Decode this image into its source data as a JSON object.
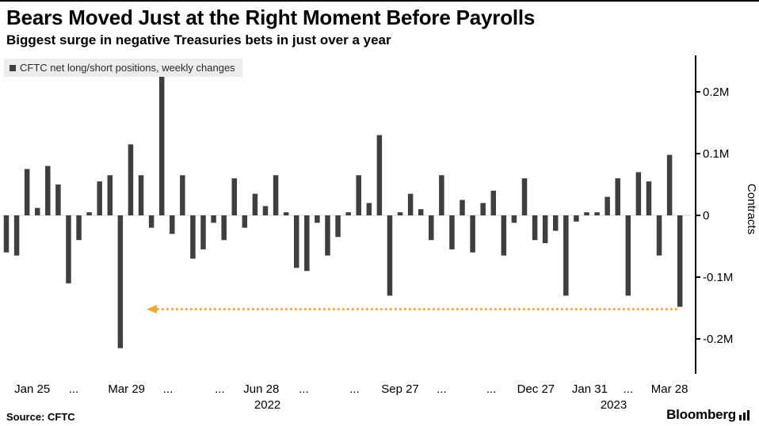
{
  "header": {
    "title": "Bears Moved Just at the Right Moment Before Payrolls",
    "subtitle": "Biggest surge in negative Treasuries bets in just over a year"
  },
  "legend": {
    "label": "CFTC net long/short positions, weekly changes",
    "swatch_color": "#3F3F3F"
  },
  "footer": {
    "source": "Source: CFTC",
    "brand": "Bloomberg"
  },
  "chart_data": {
    "type": "bar",
    "title": "Bears Moved Just at the Right Moment Before Payrolls",
    "subtitle": "Biggest surge in negative Treasuries bets in just over a year",
    "series_name": "CFTC net long/short positions, weekly changes",
    "unit": "millions of contracts",
    "ylabel": "Contracts",
    "xlabel": "",
    "ylim": [
      -0.26,
      0.26
    ],
    "grid": false,
    "legend_position": "top-left",
    "bar_color": "#3F3F3F",
    "zero_line_color": "#D6D6D6",
    "axis_color": "#000000",
    "values": [
      -0.06,
      -0.065,
      0.075,
      0.012,
      0.08,
      0.05,
      -0.11,
      -0.04,
      0.005,
      0.055,
      0.065,
      -0.215,
      0.115,
      0.065,
      -0.02,
      0.225,
      -0.03,
      0.065,
      -0.07,
      -0.055,
      -0.012,
      -0.04,
      0.06,
      -0.02,
      0.035,
      0.015,
      0.065,
      0.005,
      -0.085,
      -0.09,
      -0.012,
      -0.065,
      -0.035,
      0.005,
      0.065,
      0.02,
      0.13,
      -0.13,
      0.005,
      0.035,
      0.01,
      -0.04,
      0.065,
      -0.055,
      0.025,
      -0.06,
      0.02,
      0.04,
      -0.065,
      -0.012,
      0.06,
      -0.04,
      -0.045,
      -0.025,
      -0.13,
      -0.01,
      0.005,
      0.005,
      0.03,
      0.06,
      -0.13,
      0.07,
      0.055,
      -0.065,
      0.098,
      -0.148
    ],
    "y_ticks": [
      {
        "v": 0.2,
        "label": "0.2M"
      },
      {
        "v": 0.1,
        "label": "0.1M"
      },
      {
        "v": 0,
        "label": "0"
      },
      {
        "v": -0.1,
        "label": "-0.1M"
      },
      {
        "v": -0.2,
        "label": "-0.2M"
      }
    ],
    "x_ticks": [
      {
        "i": 2.5,
        "label": "Jan 25"
      },
      {
        "i": 6.5,
        "label": "..."
      },
      {
        "i": 11.6,
        "label": "Mar 29"
      },
      {
        "i": 15.6,
        "label": "..."
      },
      {
        "i": 20.6,
        "label": "..."
      },
      {
        "i": 24.6,
        "label": "Jun 28"
      },
      {
        "i": 28.7,
        "label": "..."
      },
      {
        "i": 33.6,
        "label": "..."
      },
      {
        "i": 38.0,
        "label": "Sep 27"
      },
      {
        "i": 42.0,
        "label": "..."
      },
      {
        "i": 46.8,
        "label": "..."
      },
      {
        "i": 51.1,
        "label": "Dec 27"
      },
      {
        "i": 56.3,
        "label": "Jan 31"
      },
      {
        "i": 60.0,
        "label": "..."
      },
      {
        "i": 64.0,
        "label": "Mar 28"
      }
    ],
    "year_labels": [
      {
        "i": 25.2,
        "label": "2022"
      },
      {
        "i": 58.6,
        "label": "2023"
      }
    ],
    "annotation": {
      "description": "dotted horizontal line with left arrow marking prior comparable level",
      "value": -0.152,
      "from_index": 14,
      "to_index": 65,
      "color": "#F5A62D"
    }
  }
}
